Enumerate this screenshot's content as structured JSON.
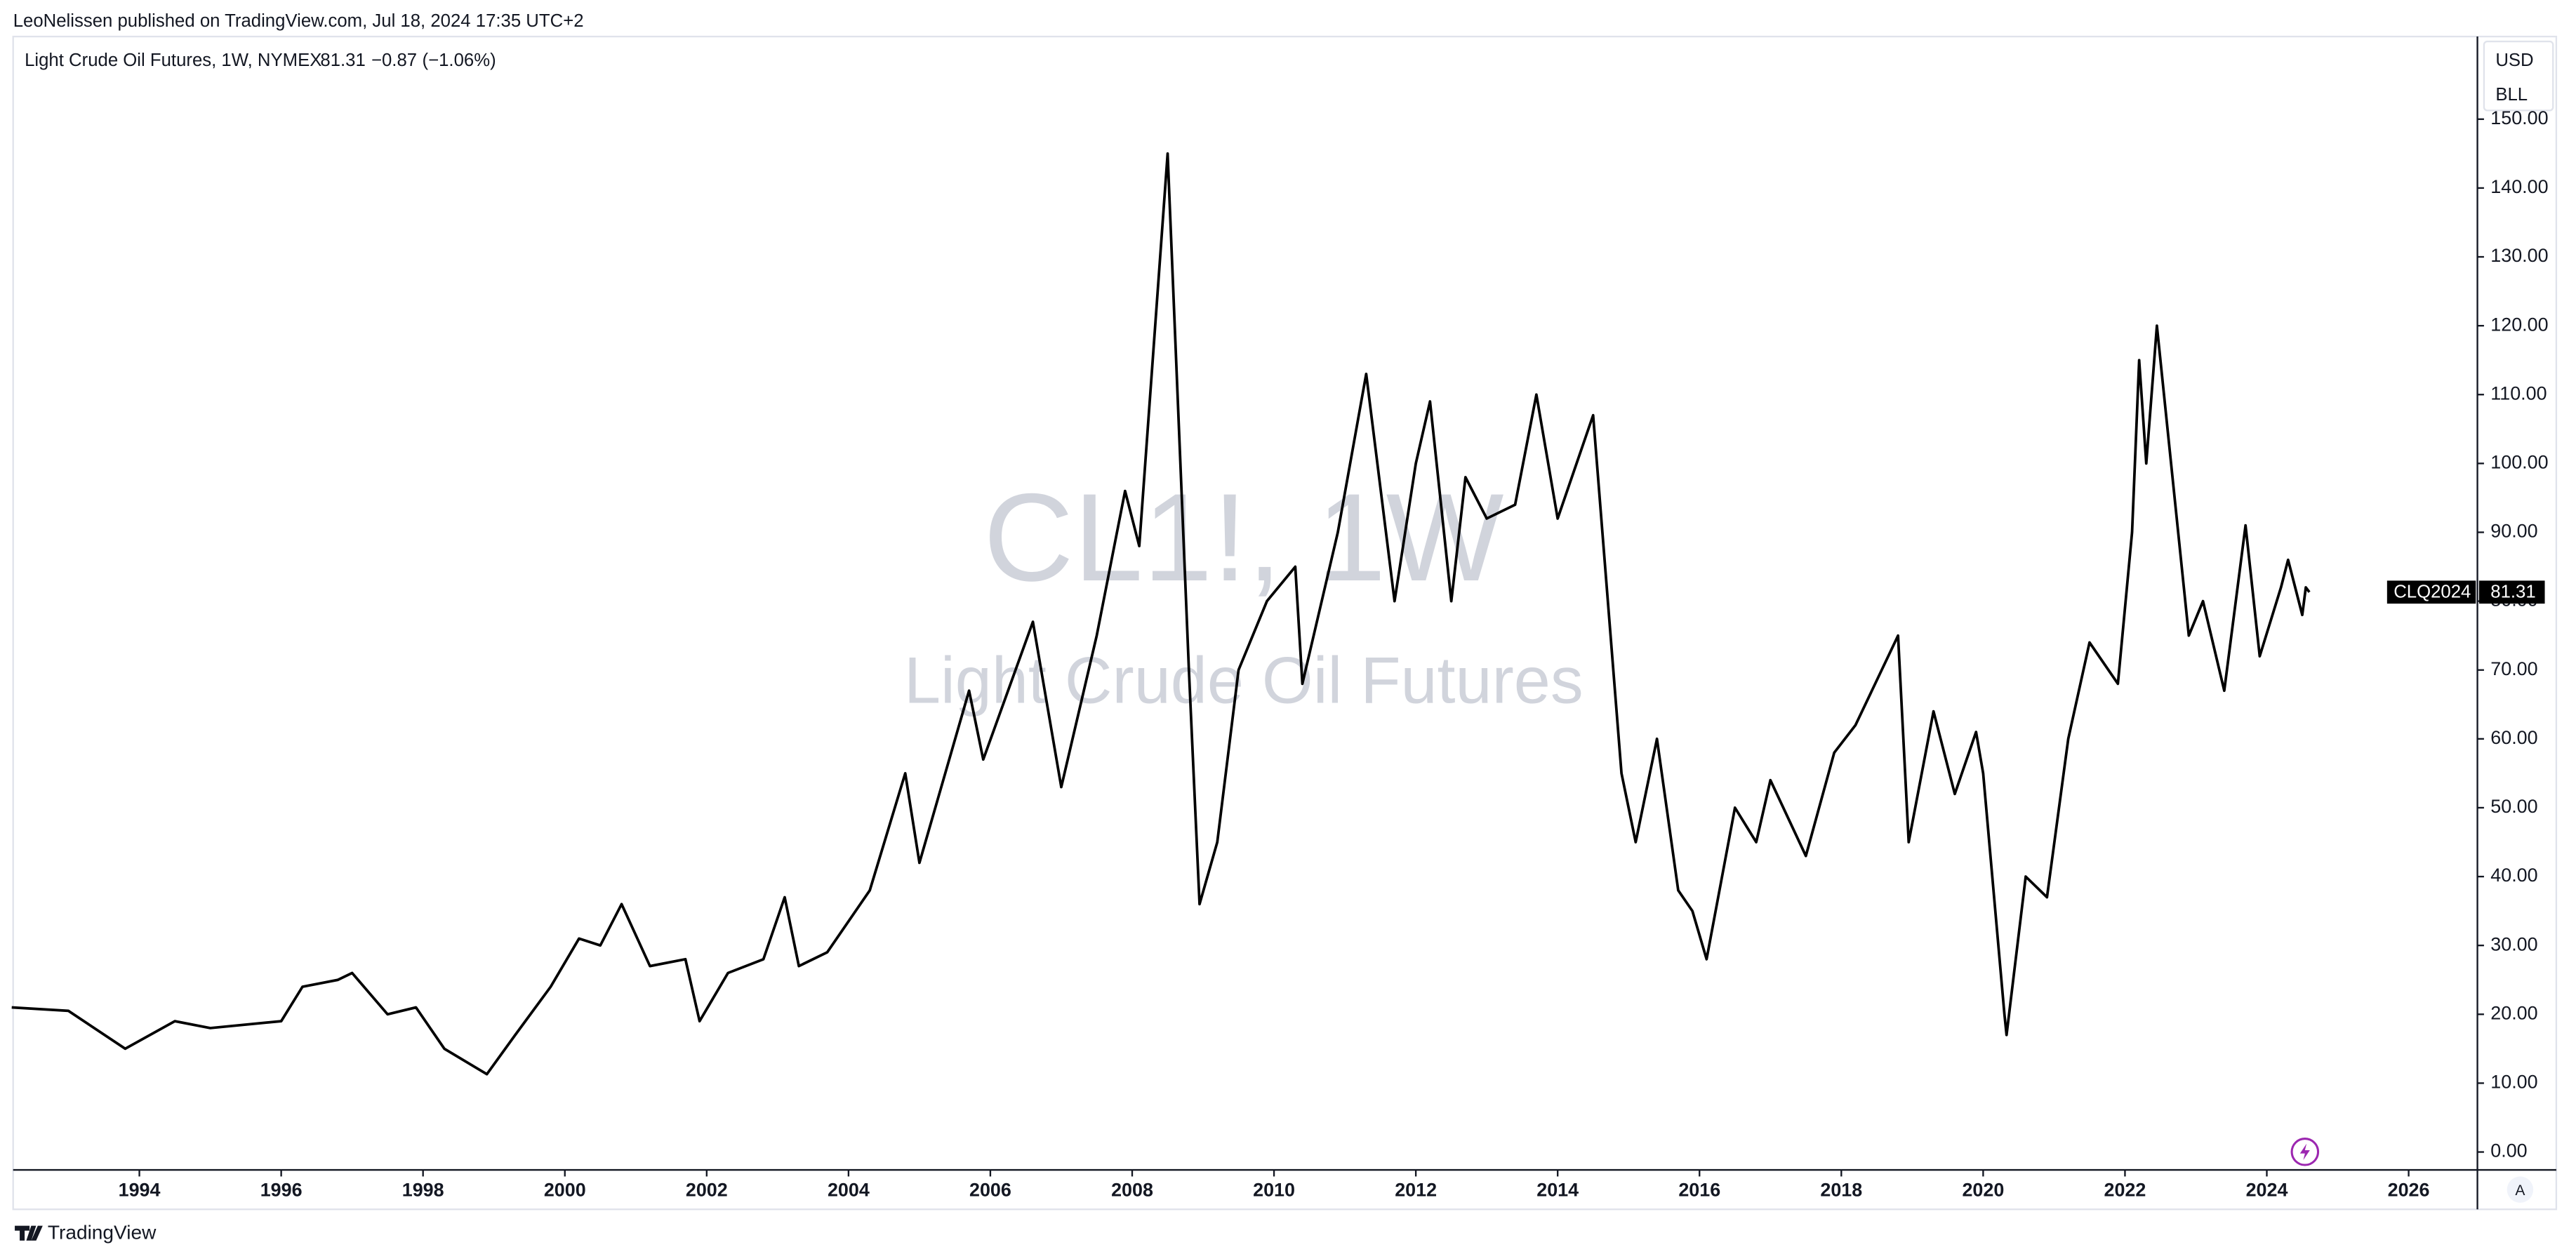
{
  "header": {
    "publisher": "LeoNelissen published on TradingView.com, Jul 18, 2024 17:35 UTC+2",
    "symbol_info": "Light Crude Oil Futures, 1W, NYMEX",
    "last_price": "81.31",
    "change": "−0.87",
    "change_pct": "(−1.06%)",
    "currency": "USD",
    "unit": "BLL",
    "contract": "CLQ2024",
    "brand": "TradingView",
    "auto_button": "A"
  },
  "chart_data": {
    "type": "line",
    "watermark": "CL1!, 1W",
    "watermark_sub": "Light Crude Oil Futures",
    "color": "#000000",
    "x": [
      1992.2,
      1993,
      1993.8,
      1994.5,
      1995,
      1996,
      1996.3,
      1996.8,
      1997,
      1997.5,
      1997.9,
      1998.3,
      1998.9,
      1999.3,
      1999.8,
      2000.2,
      2000.5,
      2000.8,
      2001.2,
      2001.7,
      2001.9,
      2002.3,
      2002.8,
      2003.1,
      2003.3,
      2003.7,
      2004.3,
      2004.8,
      2005.0,
      2005.7,
      2005.9,
      2006.6,
      2007.0,
      2007.5,
      2007.9,
      2008.1,
      2008.5,
      2008.8,
      2008.95,
      2009.2,
      2009.5,
      2009.9,
      2010.3,
      2010.4,
      2010.9,
      2011.3,
      2011.7,
      2012.0,
      2012.2,
      2012.5,
      2012.7,
      2013.0,
      2013.4,
      2013.7,
      2014.0,
      2014.5,
      2014.9,
      2015.1,
      2015.4,
      2015.7,
      2015.9,
      2016.1,
      2016.5,
      2016.8,
      2017.0,
      2017.5,
      2017.9,
      2018.2,
      2018.8,
      2018.95,
      2019.3,
      2019.6,
      2019.9,
      2020.0,
      2020.3,
      2020.33,
      2020.6,
      2020.9,
      2021.2,
      2021.5,
      2021.9,
      2022.1,
      2022.2,
      2022.3,
      2022.45,
      2022.8,
      2022.9,
      2023.1,
      2023.4,
      2023.7,
      2023.9,
      2024.2,
      2024.3,
      2024.5,
      2024.55,
      2024.6
    ],
    "values": [
      21,
      20.5,
      15,
      19,
      18,
      19,
      24,
      25,
      26,
      20,
      21,
      15,
      11.3,
      17,
      24,
      31,
      30,
      36,
      27,
      28,
      19,
      26,
      28,
      37,
      27,
      29,
      38,
      55,
      42,
      67,
      57,
      77,
      53,
      75,
      96,
      88,
      145,
      70,
      36,
      45,
      70,
      80,
      85,
      68,
      90,
      113,
      80,
      100,
      109,
      80,
      98,
      92,
      94,
      110,
      92,
      107,
      55,
      45,
      60,
      38,
      35,
      28,
      50,
      45,
      54,
      43,
      58,
      62,
      75,
      45,
      64,
      52,
      61,
      55,
      20,
      17,
      40,
      37,
      60,
      74,
      68,
      90,
      115,
      100,
      120,
      85,
      75,
      80,
      67,
      91,
      72,
      82,
      86,
      78,
      82,
      81.31
    ],
    "xlim": [
      1992.22,
      2026.97
    ],
    "ylim": [
      -2.6,
      162
    ],
    "xticks": [
      1994,
      1996,
      1998,
      2000,
      2002,
      2004,
      2006,
      2008,
      2010,
      2012,
      2014,
      2016,
      2018,
      2020,
      2022,
      2024,
      2026
    ],
    "yticks": [
      {
        "value": 0,
        "label": "0.00"
      },
      {
        "value": 10,
        "label": "10.00"
      },
      {
        "value": 20,
        "label": "20.00"
      },
      {
        "value": 30,
        "label": "30.00"
      },
      {
        "value": 40,
        "label": "40.00"
      },
      {
        "value": 50,
        "label": "50.00"
      },
      {
        "value": 60,
        "label": "60.00"
      },
      {
        "value": 70,
        "label": "70.00"
      },
      {
        "value": 80,
        "label": "80.00"
      },
      {
        "value": 90,
        "label": "90.00"
      },
      {
        "value": 100,
        "label": "100.00"
      },
      {
        "value": 110,
        "label": "110.00"
      },
      {
        "value": 120,
        "label": "120.00"
      },
      {
        "value": 130,
        "label": "130.00"
      },
      {
        "value": 140,
        "label": "140.00"
      },
      {
        "value": 150,
        "label": "150.00"
      }
    ]
  }
}
